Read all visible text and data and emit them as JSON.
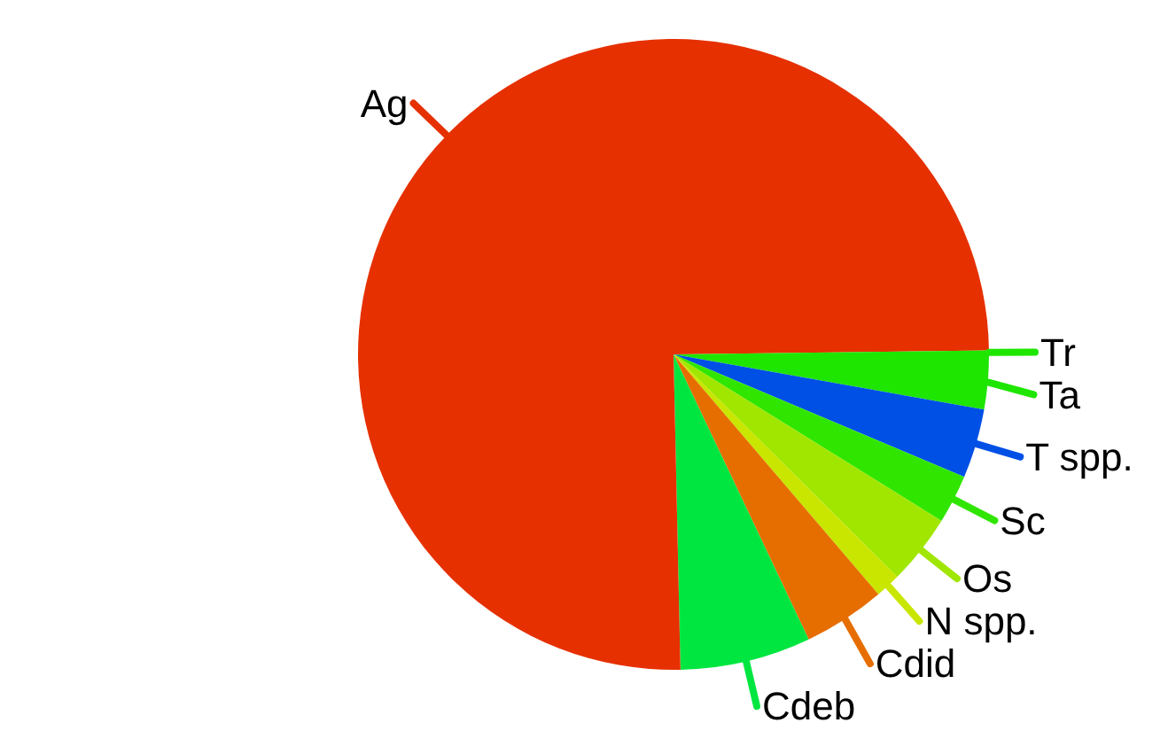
{
  "chart_data": {
    "type": "pie",
    "categories": [
      "Ta",
      "T spp.",
      "Sc",
      "Os",
      "N spp.",
      "Cdid",
      "Cdeb",
      "Ag",
      "Tr"
    ],
    "values": [
      2.8,
      3.55,
      2.5,
      3.6,
      1.3,
      4.2,
      6.7,
      75.15,
      0.2
    ],
    "colors": [
      "#1ee600",
      "#0050e6",
      "#30e600",
      "#a0e600",
      "#c8e600",
      "#e66e00",
      "#00e640",
      "#e63000",
      "#1ee600"
    ]
  }
}
